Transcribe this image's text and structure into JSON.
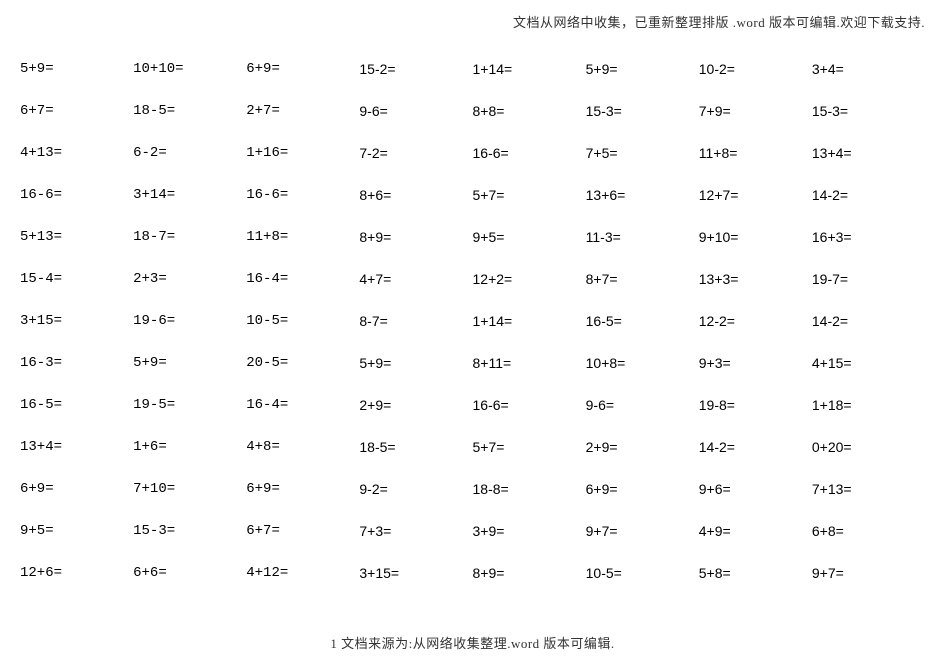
{
  "header_text": "文档从网络中收集，已重新整理排版 .word 版本可编辑.欢迎下载支持.",
  "footer_text": "1 文档来源为:从网络收集整理.word 版本可编辑.",
  "text_color": "#000000",
  "background_color": "#ffffff",
  "note_color": "#333333",
  "font_size_cell": 14,
  "font_size_note": 13,
  "num_columns": 8,
  "num_rows": 13,
  "worksheet": {
    "type": "table",
    "rows": [
      [
        "5+9=",
        "10+10=",
        "6+9=",
        "15-2=",
        "1+14=",
        "5+9=",
        "10-2=",
        "3+4="
      ],
      [
        "6+7=",
        "18-5=",
        "2+7=",
        "9-6=",
        "8+8=",
        "15-3=",
        "7+9=",
        "15-3="
      ],
      [
        "4+13=",
        "6-2=",
        "1+16=",
        "7-2=",
        "16-6=",
        "7+5=",
        "11+8=",
        "13+4="
      ],
      [
        "16-6=",
        "3+14=",
        "16-6=",
        "8+6=",
        "5+7=",
        "13+6=",
        "12+7=",
        "14-2="
      ],
      [
        "5+13=",
        "18-7=",
        "11+8=",
        "8+9=",
        "9+5=",
        "11-3=",
        "9+10=",
        "16+3="
      ],
      [
        "15-4=",
        "2+3=",
        "16-4=",
        "4+7=",
        "12+2=",
        "8+7=",
        "13+3=",
        "19-7="
      ],
      [
        "3+15=",
        "19-6=",
        "10-5=",
        "8-7=",
        "1+14=",
        "16-5=",
        "12-2=",
        "14-2="
      ],
      [
        "16-3=",
        "5+9=",
        "20-5=",
        "5+9=",
        "8+11=",
        "10+8=",
        "9+3=",
        "4+15="
      ],
      [
        "16-5=",
        "19-5=",
        "16-4=",
        "2+9=",
        "16-6=",
        "9-6=",
        "19-8=",
        "1+18="
      ],
      [
        "13+4=",
        "1+6=",
        "4+8=",
        "18-5=",
        "5+7=",
        "2+9=",
        "14-2=",
        "0+20="
      ],
      [
        "6+9=",
        "7+10=",
        "6+9=",
        "9-2=",
        "18-8=",
        "6+9=",
        "9+6=",
        "7+13="
      ],
      [
        "9+5=",
        "15-3=",
        "6+7=",
        "7+3=",
        "3+9=",
        "9+7=",
        "4+9=",
        "6+8="
      ],
      [
        "12+6=",
        "6+6=",
        "4+12=",
        "3+15=",
        "8+9=",
        "10-5=",
        "5+8=",
        "9+7="
      ]
    ]
  }
}
